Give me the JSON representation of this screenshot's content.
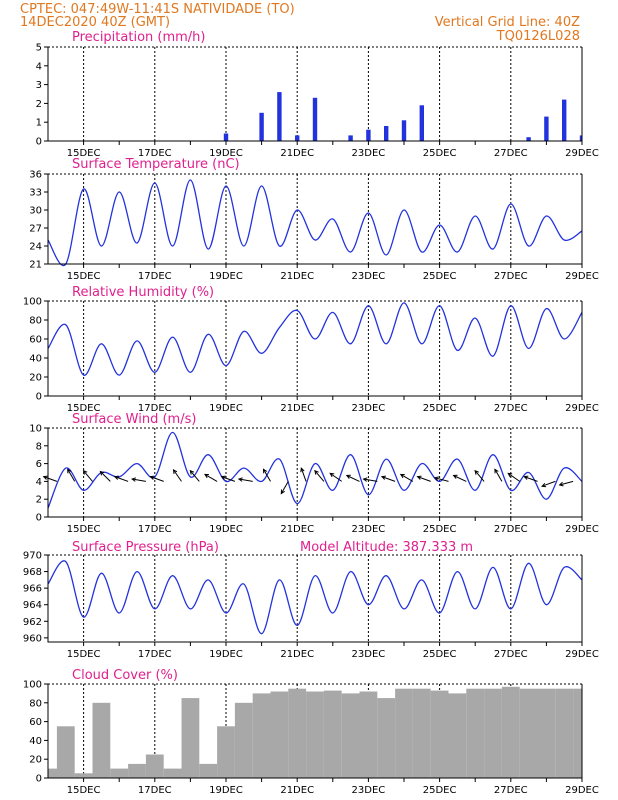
{
  "header": {
    "line1_left": "CPTEC:  047:49W-11:41S  NATIVIDADE (TO)",
    "line2_left": "14DEC2020 40Z (GMT)",
    "line1_right": "Vertical Grid Line: 40Z",
    "line2_right": "TQ0126L028"
  },
  "colors": {
    "header": "#e07820",
    "panel_title": "#e0208e",
    "series": "#2233dd",
    "cloud": "#a8a8a8"
  },
  "chart_data": [
    {
      "type": "bar",
      "title": "Precipitation (mm/h)",
      "x_labels": [
        "15DEC",
        "17DEC",
        "19DEC",
        "21DEC",
        "23DEC",
        "25DEC",
        "27DEC",
        "29DEC"
      ],
      "ylim": [
        0,
        5
      ],
      "yticks": [
        0,
        1,
        2,
        3,
        4,
        5
      ],
      "x_days": [
        14.0,
        14.5,
        15.0,
        15.5,
        16.0,
        16.5,
        17.0,
        17.5,
        18.0,
        18.5,
        19.0,
        19.5,
        20.0,
        20.5,
        21.0,
        21.5,
        22.0,
        22.5,
        23.0,
        23.5,
        24.0,
        24.5,
        25.0,
        25.5,
        26.0,
        26.5,
        27.0,
        27.5,
        28.0,
        28.5,
        29.0
      ],
      "values": [
        0,
        0,
        0,
        0,
        0,
        0,
        0,
        0,
        0,
        0,
        0.4,
        0,
        1.5,
        2.6,
        0.3,
        2.3,
        0,
        0.3,
        0.6,
        0.8,
        1.1,
        1.9,
        0,
        0,
        0,
        0,
        0,
        0.2,
        1.3,
        2.2,
        0.3
      ]
    },
    {
      "type": "line",
      "title": "Surface Temperature (nC)",
      "x_labels": [
        "15DEC",
        "17DEC",
        "19DEC",
        "21DEC",
        "23DEC",
        "25DEC",
        "27DEC",
        "29DEC"
      ],
      "ylim": [
        21,
        36
      ],
      "yticks": [
        21,
        24,
        27,
        30,
        33,
        36
      ],
      "x_days": [
        14.0,
        14.5,
        15.0,
        15.5,
        16.0,
        16.5,
        17.0,
        17.5,
        18.0,
        18.5,
        19.0,
        19.5,
        20.0,
        20.5,
        21.0,
        21.5,
        22.0,
        22.5,
        23.0,
        23.5,
        24.0,
        24.5,
        25.0,
        25.5,
        26.0,
        26.5,
        27.0,
        27.5,
        28.0,
        28.5,
        29.0
      ],
      "values": [
        25.0,
        21.0,
        33.5,
        24.0,
        33.0,
        24.5,
        34.5,
        24.0,
        35.0,
        23.5,
        34.0,
        24.0,
        34.0,
        24.0,
        30.0,
        25.0,
        28.5,
        23.0,
        29.5,
        22.5,
        30.0,
        23.0,
        27.5,
        23.0,
        29.0,
        23.5,
        31.0,
        24.0,
        29.0,
        25.0,
        26.5
      ]
    },
    {
      "type": "line",
      "title": "Relative Humidity (%)",
      "x_labels": [
        "15DEC",
        "17DEC",
        "19DEC",
        "21DEC",
        "23DEC",
        "25DEC",
        "27DEC",
        "29DEC"
      ],
      "ylim": [
        0,
        100
      ],
      "yticks": [
        0,
        20,
        40,
        60,
        80,
        100
      ],
      "x_days": [
        14.0,
        14.5,
        15.0,
        15.5,
        16.0,
        16.5,
        17.0,
        17.5,
        18.0,
        18.5,
        19.0,
        19.5,
        20.0,
        20.5,
        21.0,
        21.5,
        22.0,
        22.5,
        23.0,
        23.5,
        24.0,
        24.5,
        25.0,
        25.5,
        26.0,
        26.5,
        27.0,
        27.5,
        28.0,
        28.5,
        29.0
      ],
      "values": [
        50,
        75,
        22,
        55,
        22,
        58,
        25,
        62,
        25,
        65,
        32,
        68,
        45,
        72,
        90,
        60,
        88,
        55,
        95,
        55,
        98,
        55,
        95,
        48,
        82,
        42,
        95,
        50,
        92,
        60,
        88
      ]
    },
    {
      "type": "line",
      "title": "Surface Wind (m/s)",
      "x_labels": [
        "15DEC",
        "17DEC",
        "19DEC",
        "21DEC",
        "23DEC",
        "25DEC",
        "27DEC",
        "29DEC"
      ],
      "ylim": [
        0,
        10
      ],
      "yticks": [
        0,
        2,
        4,
        6,
        8,
        10
      ],
      "x_days": [
        14.0,
        14.5,
        15.0,
        15.5,
        16.0,
        16.5,
        17.0,
        17.5,
        18.0,
        18.5,
        19.0,
        19.5,
        20.0,
        20.5,
        21.0,
        21.5,
        22.0,
        22.5,
        23.0,
        23.5,
        24.0,
        24.5,
        25.0,
        25.5,
        26.0,
        26.5,
        27.0,
        27.5,
        28.0,
        28.5,
        29.0
      ],
      "values": [
        1.0,
        5.5,
        3.0,
        5.0,
        4.5,
        6.0,
        4.5,
        9.5,
        4.5,
        7.0,
        4.0,
        5.5,
        4.0,
        6.5,
        1.5,
        6.0,
        3.0,
        7.0,
        2.5,
        6.5,
        3.0,
        6.0,
        4.0,
        6.5,
        3.0,
        7.0,
        3.0,
        5.0,
        2.0,
        5.5,
        4.0
      ],
      "wind_barbs": {
        "x_days": [
          14.25,
          14.75,
          15.25,
          15.75,
          16.25,
          16.75,
          17.25,
          17.75,
          18.25,
          18.75,
          19.25,
          19.75,
          20.25,
          20.75,
          21.25,
          21.75,
          22.25,
          22.75,
          23.25,
          23.75,
          24.25,
          24.75,
          25.25,
          25.75,
          26.25,
          26.75,
          27.25,
          27.75,
          28.25,
          28.75
        ],
        "angle_deg": [
          200,
          240,
          230,
          225,
          200,
          190,
          200,
          235,
          230,
          210,
          200,
          190,
          240,
          120,
          250,
          230,
          215,
          205,
          190,
          200,
          210,
          200,
          195,
          205,
          230,
          240,
          215,
          200,
          160,
          165
        ]
      }
    },
    {
      "type": "line",
      "title": "Surface Pressure (hPa)",
      "annotation": "Model Altitude: 387.333 m",
      "x_labels": [
        "15DEC",
        "17DEC",
        "19DEC",
        "21DEC",
        "23DEC",
        "25DEC",
        "27DEC",
        "29DEC"
      ],
      "ylim": [
        959.5,
        970
      ],
      "yticks": [
        960,
        962,
        964,
        966,
        968,
        970
      ],
      "x_days": [
        14.0,
        14.5,
        15.0,
        15.5,
        16.0,
        16.5,
        17.0,
        17.5,
        18.0,
        18.5,
        19.0,
        19.5,
        20.0,
        20.5,
        21.0,
        21.5,
        22.0,
        22.5,
        23.0,
        23.5,
        24.0,
        24.5,
        25.0,
        25.5,
        26.0,
        26.5,
        27.0,
        27.5,
        28.0,
        28.5,
        29.0
      ],
      "values": [
        966.5,
        969.2,
        962.5,
        967.8,
        963.0,
        968.0,
        963.5,
        967.5,
        963.5,
        967.0,
        963.0,
        966.5,
        960.5,
        967.0,
        961.5,
        967.5,
        963.0,
        968.0,
        964.0,
        967.5,
        963.5,
        967.0,
        963.0,
        968.0,
        963.5,
        968.5,
        963.5,
        969.0,
        964.0,
        968.5,
        967.0
      ]
    },
    {
      "type": "bar",
      "title": "Cloud Cover (%)",
      "x_labels": [
        "15DEC",
        "17DEC",
        "19DEC",
        "21DEC",
        "23DEC",
        "25DEC",
        "27DEC",
        "29DEC"
      ],
      "ylim": [
        0,
        100
      ],
      "yticks": [
        0,
        20,
        40,
        60,
        80,
        100
      ],
      "x_days": [
        14.0,
        14.5,
        15.0,
        15.5,
        16.0,
        16.5,
        17.0,
        17.5,
        18.0,
        18.5,
        19.0,
        19.5,
        20.0,
        20.5,
        21.0,
        21.5,
        22.0,
        22.5,
        23.0,
        23.5,
        24.0,
        24.5,
        25.0,
        25.5,
        26.0,
        26.5,
        27.0,
        27.5,
        28.0,
        28.5,
        29.0
      ],
      "values": [
        10,
        55,
        5,
        80,
        10,
        15,
        25,
        10,
        85,
        15,
        55,
        80,
        90,
        92,
        95,
        92,
        93,
        90,
        92,
        85,
        95,
        95,
        93,
        90,
        95,
        95,
        97,
        95,
        95,
        95,
        95
      ]
    }
  ]
}
